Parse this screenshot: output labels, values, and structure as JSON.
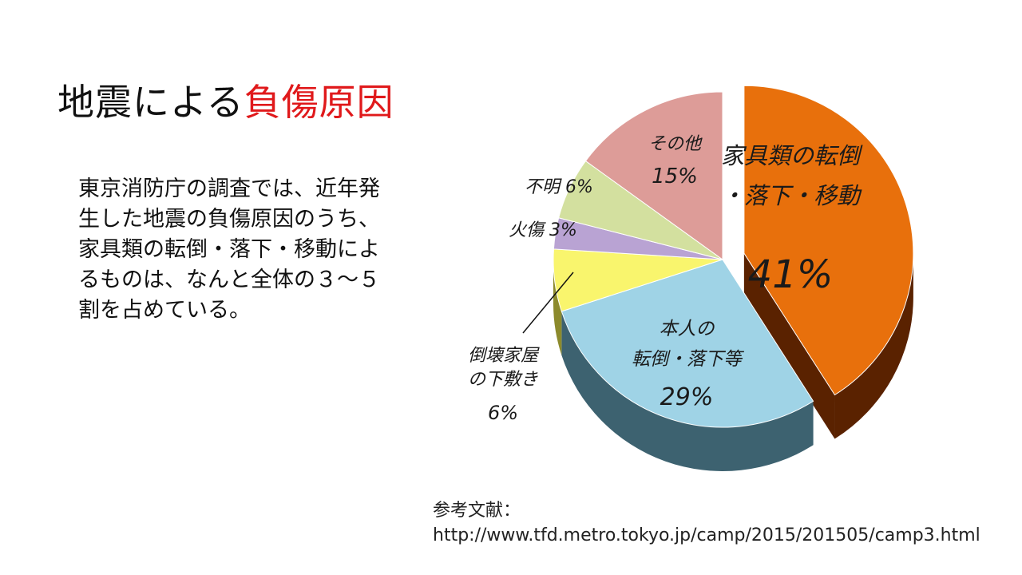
{
  "title": {
    "main": "地震による",
    "accent": "負傷原因"
  },
  "body": {
    "text": "東京消防庁の調査では、近年発生した地震の負傷原因のうち、家具類の転倒・落下・移動によるものは、なんと全体の３～５割を占めている。"
  },
  "reference": {
    "label": "参考文献：",
    "url": "http://www.tfd.metro.tokyo.jp/camp/2015/201505/camp3.html"
  },
  "chart_data": {
    "type": "pie",
    "slices": [
      {
        "label_lines": [
          "家具類の転倒",
          "・落下・移動"
        ],
        "value": 41,
        "value_label": "41%",
        "color": "#e8700c",
        "side_color": "#5a2200",
        "exploded": true
      },
      {
        "label_lines": [
          "本人の",
          "転倒・落下等"
        ],
        "value": 29,
        "value_label": "29%",
        "color": "#9fd3e6",
        "side_color": "#3d6270"
      },
      {
        "label_lines": [
          "倒壊家屋",
          "の下敷き"
        ],
        "value": 6,
        "value_label": "6%",
        "color": "#f9f56d",
        "side_color": "#8c8a2c"
      },
      {
        "label_lines": [
          "火傷"
        ],
        "value": 3,
        "value_label": "3%",
        "color": "#b9a3d3",
        "side_color": "#5e5070"
      },
      {
        "label_lines": [
          "不明"
        ],
        "value": 6,
        "value_label": "6%",
        "color": "#d3e09f",
        "side_color": "#6a7348"
      },
      {
        "label_lines": [
          "その他"
        ],
        "value": 15,
        "value_label": "15%",
        "color": "#dd9c98",
        "side_color": "#774e4b"
      }
    ]
  }
}
